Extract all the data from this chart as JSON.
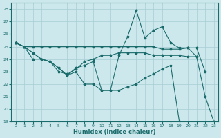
{
  "xlabel": "Humidex (Indice chaleur)",
  "bg_color": "#cce8ec",
  "grid_color": "#a8cdd4",
  "line_color": "#1a6b6b",
  "xlim": [
    -0.5,
    23.5
  ],
  "ylim": [
    19,
    28.5
  ],
  "yticks": [
    19,
    20,
    21,
    22,
    23,
    24,
    25,
    26,
    27,
    28
  ],
  "xticks": [
    0,
    1,
    2,
    3,
    4,
    5,
    6,
    7,
    8,
    9,
    10,
    11,
    12,
    13,
    14,
    15,
    16,
    17,
    18,
    19,
    20,
    21,
    22,
    23
  ],
  "series": [
    {
      "x": [
        0,
        1,
        2,
        3,
        4,
        5,
        6,
        7,
        8,
        9,
        10,
        11,
        12,
        13,
        14,
        15,
        16,
        17,
        18,
        19,
        20,
        21,
        22,
        23
      ],
      "y": [
        25.3,
        25.0,
        24.5,
        24.0,
        23.8,
        23.3,
        22.7,
        23.3,
        23.5,
        23.8,
        21.5,
        21.5,
        24.3,
        25.8,
        27.9,
        25.7,
        26.3,
        26.6,
        25.3,
        24.9,
        24.9,
        24.2,
        21.0,
        19.0
      ]
    },
    {
      "x": [
        0,
        1,
        2,
        3,
        4,
        5,
        6,
        7,
        8,
        9,
        10,
        11,
        12,
        13,
        14,
        15,
        16,
        17,
        18,
        19,
        20,
        21,
        22
      ],
      "y": [
        25.3,
        25.0,
        25.0,
        25.0,
        25.0,
        25.0,
        25.0,
        25.0,
        25.0,
        25.0,
        25.0,
        25.0,
        25.0,
        25.0,
        25.0,
        25.0,
        25.0,
        24.8,
        24.8,
        24.8,
        24.9,
        24.9,
        23.0
      ]
    },
    {
      "x": [
        0,
        1,
        2,
        3,
        4,
        5,
        6,
        7,
        8,
        9,
        10,
        11,
        12,
        13,
        14,
        15,
        16,
        17,
        18,
        19,
        20,
        21
      ],
      "y": [
        25.3,
        25.0,
        24.0,
        24.0,
        23.8,
        23.0,
        22.8,
        23.2,
        23.8,
        24.0,
        24.3,
        24.3,
        24.5,
        24.5,
        24.5,
        24.5,
        24.3,
        24.3,
        24.3,
        24.3,
        24.2,
        24.2
      ]
    },
    {
      "x": [
        0,
        1,
        2,
        3,
        4,
        5,
        6,
        7,
        8,
        9,
        10,
        11,
        12,
        13,
        14,
        15,
        16,
        17,
        18,
        19
      ],
      "y": [
        25.3,
        25.0,
        24.5,
        24.0,
        23.8,
        23.3,
        22.7,
        23.0,
        22.0,
        22.0,
        21.5,
        21.5,
        21.5,
        21.8,
        22.0,
        22.5,
        22.8,
        23.2,
        23.5,
        19.0
      ]
    }
  ]
}
